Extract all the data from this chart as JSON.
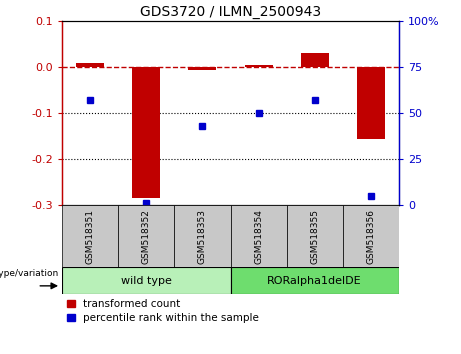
{
  "title": "GDS3720 / ILMN_2500943",
  "samples": [
    "GSM518351",
    "GSM518352",
    "GSM518353",
    "GSM518354",
    "GSM518355",
    "GSM518356"
  ],
  "transformed_count": [
    0.01,
    -0.285,
    -0.007,
    0.005,
    0.03,
    -0.155
  ],
  "percentile_rank": [
    57,
    1,
    43,
    50,
    57,
    5
  ],
  "ylim_left": [
    -0.3,
    0.1
  ],
  "ylim_right": [
    0,
    100
  ],
  "yticks_left": [
    -0.3,
    -0.2,
    -0.1,
    0.0,
    0.1
  ],
  "yticks_right": [
    0,
    25,
    50,
    75,
    100
  ],
  "bar_color": "#C00000",
  "dot_color": "#0000CC",
  "hline_color": "#C00000",
  "dotted_lines": [
    -0.1,
    -0.2
  ],
  "group_labels": [
    "wild type",
    "RORalpha1delDE"
  ],
  "group_ranges": [
    [
      0,
      3
    ],
    [
      3,
      6
    ]
  ],
  "group_color_light": "#B8F0B8",
  "group_color_dark": "#6EDD6E",
  "genotype_label": "genotype/variation",
  "legend_items": [
    "transformed count",
    "percentile rank within the sample"
  ],
  "tick_label_area_color": "#C8C8C8",
  "background_plot": "#FFFFFF",
  "dotted_line_color": "#000000",
  "bar_width": 0.5
}
